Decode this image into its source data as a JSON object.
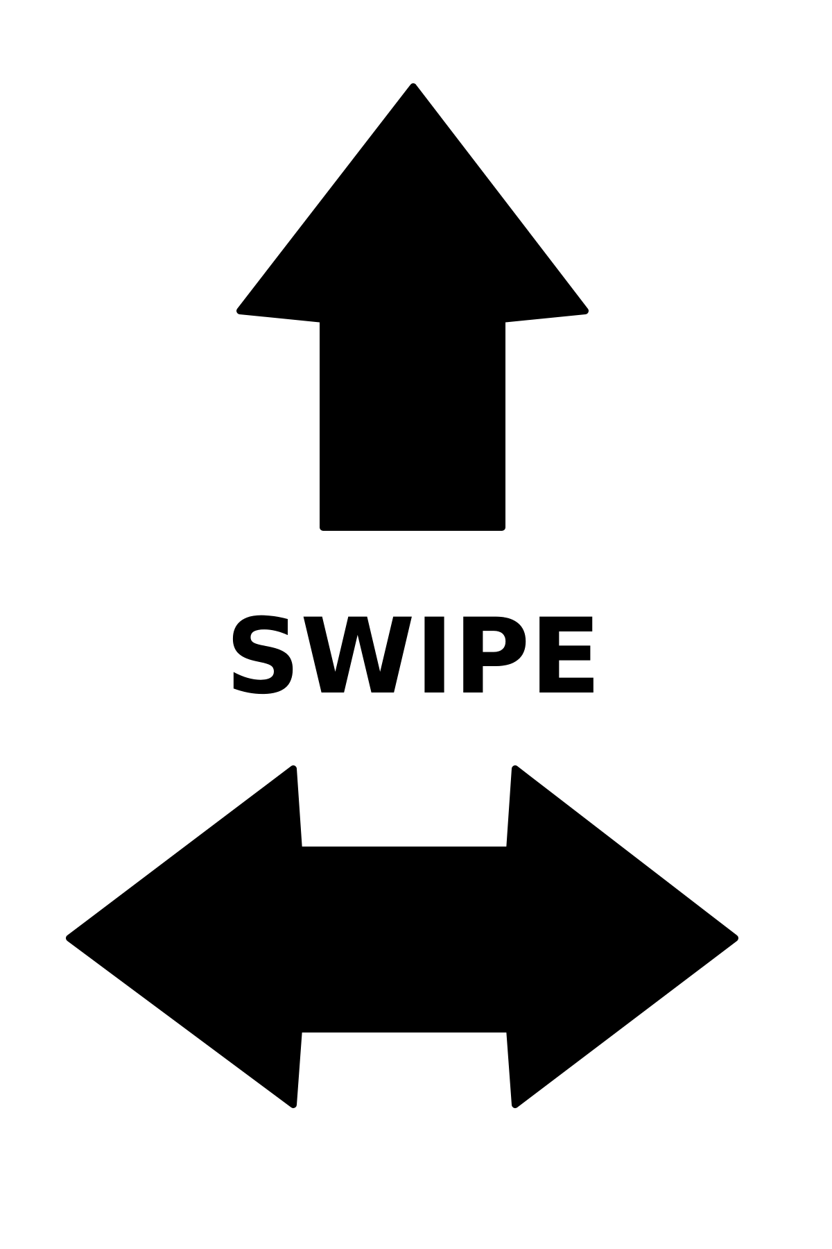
{
  "label": "SWIPE",
  "icons": {
    "up": "up-arrow-icon",
    "horizontal": "left-right-arrow-icon"
  },
  "colors": {
    "background": "#ffffff",
    "foreground": "#000000"
  }
}
